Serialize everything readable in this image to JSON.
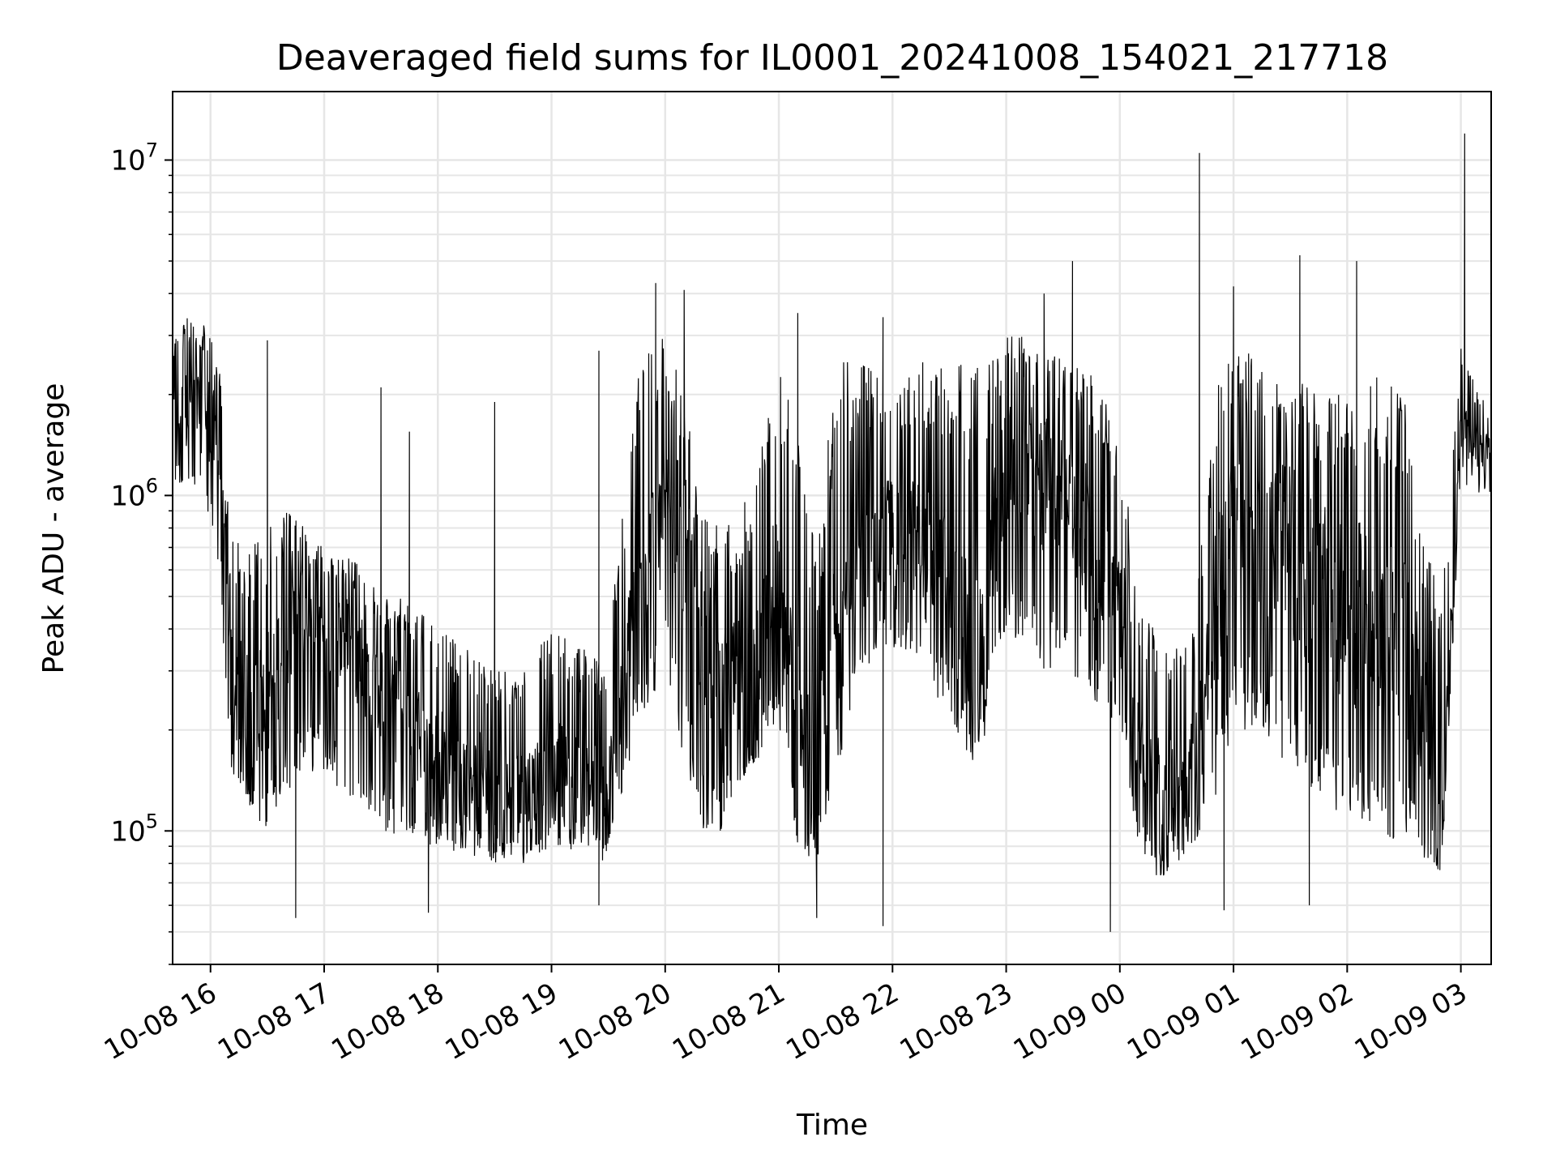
{
  "chart_data": {
    "type": "line",
    "title": "Deaveraged field sums for IL0001_20241008_154021_217718",
    "xlabel": "Time",
    "ylabel": "Peak ADU - average",
    "yscale": "log",
    "ylim": [
      40000,
      16000000
    ],
    "xlim": [
      "2024-10-08 15:40",
      "2024-10-09 03:16"
    ],
    "grid": true,
    "legend": "none",
    "line_color": "#000000",
    "grid_color": "#e6e6e6",
    "x_ticks": [
      {
        "t": "2024-10-08 16:00",
        "label": "10-08 16"
      },
      {
        "t": "2024-10-08 17:00",
        "label": "10-08 17"
      },
      {
        "t": "2024-10-08 18:00",
        "label": "10-08 18"
      },
      {
        "t": "2024-10-08 19:00",
        "label": "10-08 19"
      },
      {
        "t": "2024-10-08 20:00",
        "label": "10-08 20"
      },
      {
        "t": "2024-10-08 21:00",
        "label": "10-08 21"
      },
      {
        "t": "2024-10-08 22:00",
        "label": "10-08 22"
      },
      {
        "t": "2024-10-08 23:00",
        "label": "10-08 23"
      },
      {
        "t": "2024-10-09 00:00",
        "label": "10-09 00"
      },
      {
        "t": "2024-10-09 01:00",
        "label": "10-09 01"
      },
      {
        "t": "2024-10-09 02:00",
        "label": "10-09 02"
      },
      {
        "t": "2024-10-09 03:00",
        "label": "10-09 03"
      }
    ],
    "y_ticks": [
      {
        "value": 100000,
        "base": "10",
        "exp": "5"
      },
      {
        "value": 1000000,
        "base": "10",
        "exp": "6"
      },
      {
        "value": 10000000,
        "base": "10",
        "exp": "7"
      }
    ],
    "series": [
      {
        "x": [
          "2024-10-08 15:40",
          "2024-10-08 15:50",
          "2024-10-08 16:00",
          "2024-10-08 16:05",
          "2024-10-08 16:10",
          "2024-10-08 16:20",
          "2024-10-08 16:30",
          "2024-10-08 16:40",
          "2024-10-08 16:50",
          "2024-10-08 17:00",
          "2024-10-08 17:15",
          "2024-10-08 17:30",
          "2024-10-08 17:45",
          "2024-10-08 18:00",
          "2024-10-08 18:15",
          "2024-10-08 18:30",
          "2024-10-08 18:45",
          "2024-10-08 19:00",
          "2024-10-08 19:15",
          "2024-10-08 19:30",
          "2024-10-08 19:45",
          "2024-10-08 20:00",
          "2024-10-08 20:10",
          "2024-10-08 20:20",
          "2024-10-08 20:30",
          "2024-10-08 20:45",
          "2024-10-08 21:00",
          "2024-10-08 21:10",
          "2024-10-08 21:20",
          "2024-10-08 21:30",
          "2024-10-08 21:45",
          "2024-10-08 22:00",
          "2024-10-08 22:15",
          "2024-10-08 22:30",
          "2024-10-08 22:45",
          "2024-10-08 23:00",
          "2024-10-08 23:15",
          "2024-10-08 23:30",
          "2024-10-08 23:45",
          "2024-10-09 00:00",
          "2024-10-09 00:10",
          "2024-10-09 00:20",
          "2024-10-09 00:30",
          "2024-10-09 00:40",
          "2024-10-09 00:50",
          "2024-10-09 01:00",
          "2024-10-09 01:15",
          "2024-10-09 01:30",
          "2024-10-09 01:45",
          "2024-10-09 02:00",
          "2024-10-09 02:15",
          "2024-10-09 02:30",
          "2024-10-09 02:40",
          "2024-10-09 02:50",
          "2024-10-09 03:00",
          "2024-10-09 03:10",
          "2024-10-09 03:16"
        ],
        "values": [
          1600000,
          1900000,
          1700000,
          1200000,
          300000,
          220000,
          250000,
          380000,
          450000,
          400000,
          350000,
          260000,
          200000,
          170000,
          150000,
          140000,
          130000,
          160000,
          140000,
          130000,
          500000,
          900000,
          700000,
          400000,
          250000,
          300000,
          550000,
          200000,
          130000,
          400000,
          650000,
          800000,
          700000,
          500000,
          300000,
          1300000,
          1100000,
          1000000,
          700000,
          500000,
          200000,
          140000,
          130000,
          160000,
          400000,
          900000,
          800000,
          700000,
          500000,
          450000,
          400000,
          350000,
          250000,
          130000,
          1500000,
          1400000,
          1300000
        ],
        "envelope_low": [
          1100000,
          1000000,
          800000,
          600000,
          150000,
          110000,
          100000,
          130000,
          150000,
          150000,
          120000,
          100000,
          90000,
          90000,
          85000,
          80000,
          80000,
          90000,
          85000,
          80000,
          200000,
          300000,
          150000,
          100000,
          100000,
          150000,
          200000,
          90000,
          80000,
          150000,
          300000,
          350000,
          300000,
          200000,
          150000,
          400000,
          300000,
          300000,
          250000,
          200000,
          90000,
          70000,
          80000,
          90000,
          120000,
          200000,
          200000,
          150000,
          120000,
          110000,
          100000,
          90000,
          80000,
          75000,
          1100000,
          1000000,
          1000000
        ],
        "envelope_high": [
          3000000,
          3500000,
          3200000,
          2500000,
          800000,
          700000,
          800000,
          900000,
          800000,
          700000,
          650000,
          500000,
          500000,
          400000,
          350000,
          300000,
          300000,
          400000,
          350000,
          350000,
          2500000,
          3000000,
          2000000,
          900000,
          800000,
          1000000,
          2500000,
          1500000,
          700000,
          2500000,
          2500000,
          2000000,
          2500000,
          2500000,
          2500000,
          3000000,
          3000000,
          2500000,
          2500000,
          1500000,
          500000,
          400000,
          350000,
          450000,
          2000000,
          3000000,
          2500000,
          2500000,
          2000000,
          2000000,
          2500000,
          2000000,
          800000,
          500000,
          2800000,
          2000000,
          1800000
        ],
        "spikes": [
          {
            "t": "2024-10-08 16:30",
            "value": 2900000
          },
          {
            "t": "2024-10-08 17:30",
            "value": 2100000
          },
          {
            "t": "2024-10-08 17:45",
            "value": 1550000
          },
          {
            "t": "2024-10-08 18:30",
            "value": 1900000
          },
          {
            "t": "2024-10-08 19:25",
            "value": 2700000
          },
          {
            "t": "2024-10-08 19:55",
            "value": 4300000
          },
          {
            "t": "2024-10-08 20:10",
            "value": 4100000
          },
          {
            "t": "2024-10-08 21:10",
            "value": 3500000
          },
          {
            "t": "2024-10-08 21:55",
            "value": 3400000
          },
          {
            "t": "2024-10-08 23:20",
            "value": 4000000
          },
          {
            "t": "2024-10-08 23:35",
            "value": 5000000
          },
          {
            "t": "2024-10-09 00:42",
            "value": 10500000
          },
          {
            "t": "2024-10-09 01:00",
            "value": 4200000
          },
          {
            "t": "2024-10-09 01:35",
            "value": 5200000
          },
          {
            "t": "2024-10-09 02:05",
            "value": 5000000
          },
          {
            "t": "2024-10-09 03:02",
            "value": 12000000
          },
          {
            "t": "2024-10-08 16:45",
            "value": 55000
          },
          {
            "t": "2024-10-08 17:55",
            "value": 57000
          },
          {
            "t": "2024-10-08 19:25",
            "value": 60000
          },
          {
            "t": "2024-10-08 21:20",
            "value": 55000
          },
          {
            "t": "2024-10-08 21:55",
            "value": 52000
          },
          {
            "t": "2024-10-08 23:55",
            "value": 50000
          },
          {
            "t": "2024-10-09 00:55",
            "value": 58000
          },
          {
            "t": "2024-10-09 01:40",
            "value": 60000
          }
        ]
      }
    ]
  }
}
